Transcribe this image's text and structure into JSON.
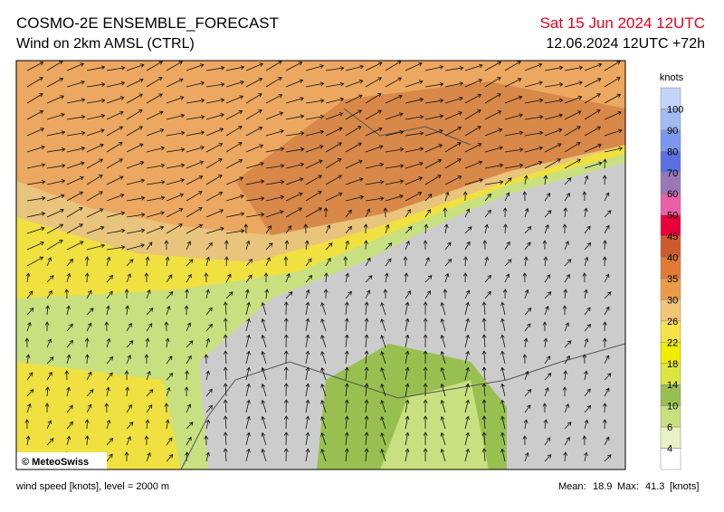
{
  "header": {
    "title": "COSMO-2E ENSEMBLE_FORECAST",
    "subtitle": "Wind on 2km AMSL (CTRL)",
    "valid_time": "Sat 15 Jun 2024 12UTC",
    "run": "12.06.2024 12UTC +72h"
  },
  "legend": {
    "unit": "knots",
    "items": [
      {
        "color": "#c4d4f8"
      },
      {
        "value": 100,
        "color": "#a2bcf2"
      },
      {
        "value": 90,
        "color": "#7c98ec"
      },
      {
        "value": 80,
        "color": "#5c70e2"
      },
      {
        "value": 70,
        "color": "#9a78b8"
      },
      {
        "value": 60,
        "color": "#e860a8"
      },
      {
        "value": 50,
        "color": "#e8003a"
      },
      {
        "value": 45,
        "color": "#cc5a2c"
      },
      {
        "value": 40,
        "color": "#e07a34"
      },
      {
        "value": 35,
        "color": "#ec9c48"
      },
      {
        "value": 30,
        "color": "#f2c678"
      },
      {
        "value": 26,
        "color": "#f8e24a"
      },
      {
        "value": 22,
        "color": "#f2ec00"
      },
      {
        "value": 18,
        "color": "#dce640"
      },
      {
        "value": 14,
        "color": "#98c050"
      },
      {
        "value": 10,
        "color": "#c8e080"
      },
      {
        "value": 6,
        "color": "#e8f2c4"
      },
      {
        "value": 4,
        "color": "#ffffff"
      }
    ]
  },
  "copyright": "© MeteoSwiss",
  "footer": {
    "description": "wind speed [knots], level = 2000 m",
    "mean_label": "Mean:",
    "mean": 18.9,
    "max_label": "Max:",
    "max": 41.3,
    "unit": "[knots]"
  }
}
